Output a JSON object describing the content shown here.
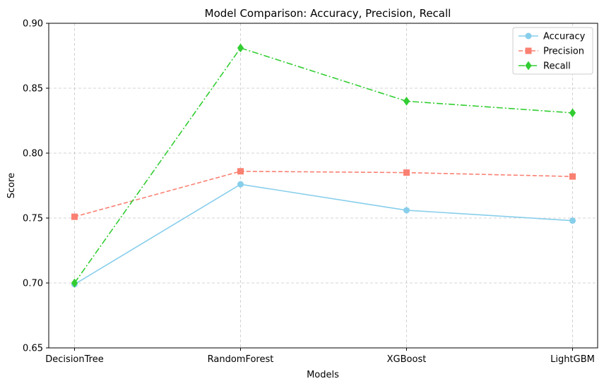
{
  "chart_data": {
    "type": "line",
    "title": "Model Comparison: Accuracy, Precision, Recall",
    "xlabel": "Models",
    "ylabel": "Score",
    "categories": [
      "DecisionTree",
      "RandomForest",
      "XGBoost",
      "LightGBM"
    ],
    "ylim": [
      0.65,
      0.9
    ],
    "yticks": [
      "0.65",
      "0.70",
      "0.75",
      "0.80",
      "0.85",
      "0.90"
    ],
    "grid": true,
    "legend_position": "top-right",
    "series": [
      {
        "name": "Accuracy",
        "values": [
          0.699,
          0.776,
          0.756,
          0.748
        ],
        "color": "#87ceeb",
        "marker": "circle",
        "linestyle": "solid"
      },
      {
        "name": "Precision",
        "values": [
          0.751,
          0.786,
          0.785,
          0.782
        ],
        "color": "#fa8072",
        "marker": "square",
        "linestyle": "dashed"
      },
      {
        "name": "Recall",
        "values": [
          0.7,
          0.881,
          0.84,
          0.831
        ],
        "color": "#32cd32",
        "marker": "diamond",
        "linestyle": "dashdot"
      }
    ]
  }
}
